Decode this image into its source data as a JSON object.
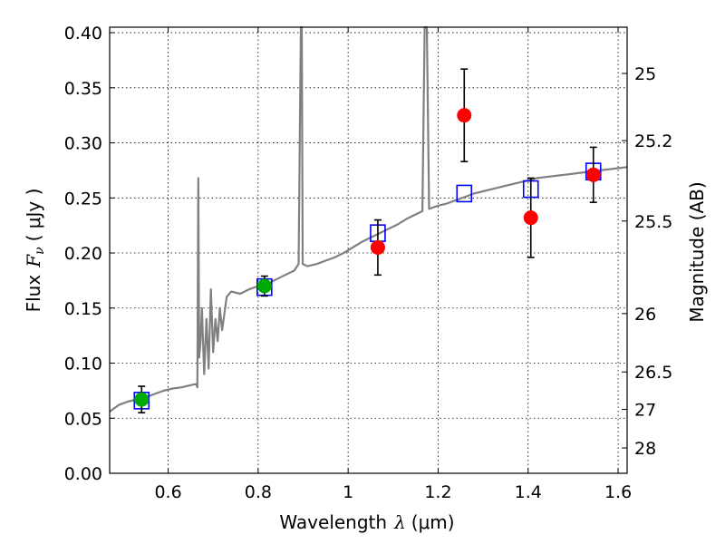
{
  "chart_data": {
    "type": "scatter",
    "xlabel": {
      "prefix": "Wavelength",
      "symbol": "λ",
      "unit": "(μm)"
    },
    "ylabel": {
      "prefix": "Flux",
      "symbol": "F",
      "sub": "ν",
      "unit": "( μJy )"
    },
    "y2label": "Magnitude (AB)",
    "xlim": [
      0.47,
      1.62
    ],
    "ylim": [
      0.0,
      0.405
    ],
    "grid": true,
    "x_ticks": [
      0.6,
      0.8,
      1.0,
      1.2,
      1.4,
      1.6
    ],
    "x_tick_labels": [
      "0.6",
      "0.8",
      "1",
      "1.2",
      "1.4",
      "1.6"
    ],
    "y_ticks": [
      0.0,
      0.05,
      0.1,
      0.15,
      0.2,
      0.25,
      0.3,
      0.35,
      0.4
    ],
    "y_tick_labels": [
      "0.00",
      "0.05",
      "0.10",
      "0.15",
      "0.20",
      "0.25",
      "0.30",
      "0.35",
      "0.40"
    ],
    "mag_ticks": [
      {
        "flux": 0.363,
        "label": "25"
      },
      {
        "flux": 0.302,
        "label": "25.2"
      },
      {
        "flux": 0.229,
        "label": "25.5"
      },
      {
        "flux": 0.145,
        "label": "26"
      },
      {
        "flux": 0.092,
        "label": "26.5"
      },
      {
        "flux": 0.058,
        "label": "27"
      },
      {
        "flux": 0.023,
        "label": "28"
      }
    ],
    "colors": {
      "spectrum": "#808080",
      "model": "#0000ff",
      "detected_green": "#00aa00",
      "detected_red": "#ff0000",
      "errorbar": "#000000"
    },
    "spectrum": [
      [
        0.47,
        0.056
      ],
      [
        0.49,
        0.062
      ],
      [
        0.51,
        0.065
      ],
      [
        0.53,
        0.067
      ],
      [
        0.55,
        0.069
      ],
      [
        0.57,
        0.072
      ],
      [
        0.59,
        0.075
      ],
      [
        0.61,
        0.077
      ],
      [
        0.63,
        0.078
      ],
      [
        0.65,
        0.08
      ],
      [
        0.662,
        0.081
      ],
      [
        0.665,
        0.078
      ],
      [
        0.667,
        0.268
      ],
      [
        0.669,
        0.105
      ],
      [
        0.672,
        0.12
      ],
      [
        0.675,
        0.15
      ],
      [
        0.68,
        0.09
      ],
      [
        0.685,
        0.14
      ],
      [
        0.69,
        0.095
      ],
      [
        0.695,
        0.167
      ],
      [
        0.7,
        0.11
      ],
      [
        0.705,
        0.14
      ],
      [
        0.71,
        0.12
      ],
      [
        0.715,
        0.15
      ],
      [
        0.72,
        0.13
      ],
      [
        0.73,
        0.16
      ],
      [
        0.74,
        0.165
      ],
      [
        0.76,
        0.163
      ],
      [
        0.78,
        0.167
      ],
      [
        0.8,
        0.17
      ],
      [
        0.82,
        0.172
      ],
      [
        0.84,
        0.176
      ],
      [
        0.86,
        0.18
      ],
      [
        0.88,
        0.184
      ],
      [
        0.89,
        0.19
      ],
      [
        0.895,
        0.405
      ],
      [
        0.897,
        0.405
      ],
      [
        0.899,
        0.19
      ],
      [
        0.91,
        0.188
      ],
      [
        0.93,
        0.19
      ],
      [
        0.95,
        0.193
      ],
      [
        0.97,
        0.196
      ],
      [
        0.99,
        0.2
      ],
      [
        1.01,
        0.205
      ],
      [
        1.03,
        0.21
      ],
      [
        1.05,
        0.214
      ],
      [
        1.07,
        0.218
      ],
      [
        1.09,
        0.222
      ],
      [
        1.11,
        0.226
      ],
      [
        1.13,
        0.231
      ],
      [
        1.15,
        0.235
      ],
      [
        1.165,
        0.238
      ],
      [
        1.17,
        0.405
      ],
      [
        1.175,
        0.405
      ],
      [
        1.18,
        0.24
      ],
      [
        1.2,
        0.243
      ],
      [
        1.22,
        0.245
      ],
      [
        1.24,
        0.248
      ],
      [
        1.26,
        0.251
      ],
      [
        1.28,
        0.254
      ],
      [
        1.3,
        0.256
      ],
      [
        1.32,
        0.258
      ],
      [
        1.34,
        0.26
      ],
      [
        1.36,
        0.262
      ],
      [
        1.38,
        0.264
      ],
      [
        1.4,
        0.266
      ],
      [
        1.42,
        0.268
      ],
      [
        1.44,
        0.269
      ],
      [
        1.46,
        0.27
      ],
      [
        1.48,
        0.271
      ],
      [
        1.5,
        0.272
      ],
      [
        1.52,
        0.273
      ],
      [
        1.54,
        0.274
      ],
      [
        1.56,
        0.275
      ],
      [
        1.58,
        0.276
      ],
      [
        1.6,
        0.277
      ],
      [
        1.62,
        0.278
      ]
    ],
    "model_points": [
      {
        "x": 0.541,
        "y": 0.066
      },
      {
        "x": 0.814,
        "y": 0.169
      },
      {
        "x": 1.066,
        "y": 0.218
      },
      {
        "x": 1.258,
        "y": 0.254
      },
      {
        "x": 1.406,
        "y": 0.258
      },
      {
        "x": 1.545,
        "y": 0.274
      }
    ],
    "detections": [
      {
        "x": 0.541,
        "y": 0.067,
        "err": 0.012,
        "color": "green"
      },
      {
        "x": 0.814,
        "y": 0.17,
        "err": 0.009,
        "color": "green"
      },
      {
        "x": 1.066,
        "y": 0.205,
        "err": 0.025,
        "color": "red"
      },
      {
        "x": 1.258,
        "y": 0.325,
        "err": 0.042,
        "color": "red"
      },
      {
        "x": 1.406,
        "y": 0.232,
        "err": 0.036,
        "color": "red"
      },
      {
        "x": 1.545,
        "y": 0.271,
        "err": 0.025,
        "color": "red"
      }
    ]
  }
}
